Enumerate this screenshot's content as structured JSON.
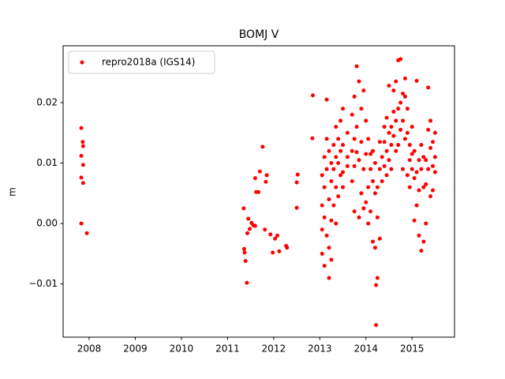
{
  "chart_data": {
    "type": "scatter",
    "title": "BOMJ V",
    "y_label": "m",
    "xlim": [
      2007.436,
      2015.92
    ],
    "xticks": [
      2008,
      2009,
      2010,
      2011,
      2012,
      2013,
      2014,
      2015
    ],
    "ylim": [
      -0.0188,
      0.0294
    ],
    "yticks": [
      {
        "value": -0.01,
        "label": "−0.01"
      },
      {
        "value": 0,
        "label": "0.00"
      },
      0.01,
      0.02
    ],
    "grid": false,
    "legend_loc": "upper left",
    "x": [
      2007.83,
      2007.86,
      2007.87,
      2007.83,
      2007.87,
      2007.83,
      2007.87,
      2007.83,
      2007.95,
      2011.35,
      2011.36,
      2011.37,
      2011.39,
      2011.42,
      2011.45,
      2011.43,
      2011.48,
      2011.52,
      2011.56,
      2011.6,
      2011.6,
      2011.62,
      2011.67,
      2011.7,
      2011.76,
      2011.83,
      2011.85,
      2011.81,
      2011.93,
      2011.98,
      2012.03,
      2012.08,
      2012.12,
      2012.27,
      2012.29,
      2012.5,
      2012.52,
      2012.5,
      2012.84,
      2012.85,
      2013.05,
      2013.05,
      2013.05,
      2013.05,
      2013.1,
      2013.1,
      2013.1,
      2013.1,
      2013.15,
      2013.15,
      2013.15,
      2013.15,
      2013.2,
      2013.2,
      2013.2,
      2013.2,
      2013.25,
      2013.25,
      2013.25,
      2013.25,
      2013.3,
      2013.3,
      2013.3,
      2013.35,
      2013.35,
      2013.35,
      2013.35,
      2013.4,
      2013.4,
      2013.4,
      2013.45,
      2013.45,
      2013.45,
      2013.5,
      2013.5,
      2013.5,
      2013.5,
      2013.6,
      2013.6,
      2013.6,
      2013.7,
      2013.7,
      2013.7,
      2013.75,
      2013.75,
      2013.75,
      2013.75,
      2013.8,
      2013.8,
      2013.8,
      2013.85,
      2013.85,
      2013.85,
      2013.9,
      2013.9,
      2013.9,
      2013.95,
      2013.95,
      2013.95,
      2014.0,
      2014.0,
      2014.0,
      2014.05,
      2014.05,
      2014.05,
      2014.1,
      2014.1,
      2014.1,
      2014.15,
      2014.15,
      2014.15,
      2014.2,
      2014.2,
      2014.2,
      2014.22,
      2014.22,
      2014.25,
      2014.25,
      2014.25,
      2014.3,
      2014.3,
      2014.3,
      2014.35,
      2014.35,
      2014.4,
      2014.4,
      2014.4,
      2014.45,
      2014.45,
      2014.45,
      2014.5,
      2014.5,
      2014.5,
      2014.55,
      2014.55,
      2014.55,
      2014.6,
      2014.6,
      2014.6,
      2014.65,
      2014.65,
      2014.65,
      2014.7,
      2014.7,
      2014.7,
      2014.75,
      2014.75,
      2014.75,
      2014.8,
      2014.8,
      2014.8,
      2014.85,
      2014.85,
      2014.85,
      2014.9,
      2014.9,
      2014.9,
      2014.95,
      2014.95,
      2014.95,
      2015.0,
      2015.0,
      2015.0,
      2015.05,
      2015.05,
      2015.05,
      2015.1,
      2015.1,
      2015.1,
      2015.15,
      2015.15,
      2015.15,
      2015.2,
      2015.2,
      2015.2,
      2015.25,
      2015.25,
      2015.25,
      2015.3,
      2015.3,
      2015.3,
      2015.35,
      2015.35,
      2015.35,
      2015.4,
      2015.4,
      2015.4,
      2015.45,
      2015.45,
      2015.45,
      2015.5,
      2015.5,
      2015.5
    ],
    "series": [
      {
        "name": "repro2018a (IGS14)",
        "color": "#ff0000",
        "values": [
          0.0158,
          0.0135,
          0.0128,
          0.0112,
          0.0097,
          0.0076,
          0.0067,
          0.0,
          -0.0016,
          0.0025,
          -0.0042,
          -0.0048,
          -0.0062,
          -0.0098,
          0.0008,
          -0.0016,
          -0.0009,
          0.0001,
          -0.0003,
          -0.0004,
          0.0075,
          0.0052,
          0.0052,
          0.0086,
          0.0127,
          0.0069,
          0.008,
          -0.001,
          -0.0018,
          -0.0048,
          -0.0025,
          -0.002,
          -0.0046,
          -0.0037,
          -0.004,
          0.0068,
          0.0081,
          0.0026,
          0.0141,
          0.0212,
          0.003,
          0.008,
          -0.001,
          -0.005,
          0.006,
          0.011,
          0.001,
          -0.007,
          0.014,
          0.009,
          -0.002,
          0.0205,
          0.004,
          0.012,
          -0.004,
          -0.009,
          0.007,
          0.01,
          0.0005,
          -0.006,
          0.009,
          0.013,
          0.003,
          0.011,
          0.016,
          0.006,
          0.0,
          0.01,
          0.014,
          0.0045,
          0.012,
          0.017,
          0.008,
          0.0085,
          0.013,
          0.019,
          0.006,
          0.011,
          0.015,
          0.0095,
          0.012,
          0.018,
          0.007,
          0.0095,
          0.014,
          0.021,
          0.002,
          0.0118,
          0.026,
          0.016,
          0.0105,
          0.0235,
          0.001,
          0.0135,
          0.019,
          0.005,
          0.009,
          0.022,
          0.0025,
          0.0115,
          0.017,
          0.0035,
          0.006,
          0.014,
          0.0,
          0.009,
          0.0115,
          0.002,
          0.007,
          0.012,
          -0.003,
          0.005,
          0.01,
          -0.004,
          -0.0168,
          -0.0102,
          -0.009,
          0.006,
          0.001,
          0.009,
          0.0135,
          -0.0025,
          0.007,
          0.011,
          0.0135,
          0.016,
          0.0095,
          0.012,
          0.0175,
          0.008,
          0.015,
          0.0228,
          0.0105,
          0.016,
          0.013,
          0.009,
          0.0185,
          0.022,
          0.0145,
          0.0235,
          0.012,
          0.017,
          0.027,
          0.019,
          0.013,
          0.0272,
          0.02,
          0.0155,
          0.0215,
          0.017,
          0.009,
          0.021,
          0.024,
          0.014,
          0.015,
          0.019,
          0.008,
          0.013,
          0.0105,
          0.006,
          0.0115,
          0.016,
          0.009,
          0.0005,
          0.0075,
          0.012,
          0.0236,
          0.0085,
          0.003,
          0.0055,
          0.0105,
          -0.002,
          -0.0045,
          0.009,
          0.013,
          0.006,
          0.011,
          -0.003,
          0.0105,
          0.0065,
          0.0,
          0.0225,
          0.0155,
          0.009,
          0.0125,
          0.0045,
          0.017,
          0.0095,
          0.0135,
          0.0055,
          0.011,
          0.015,
          0.0085
        ]
      }
    ]
  }
}
